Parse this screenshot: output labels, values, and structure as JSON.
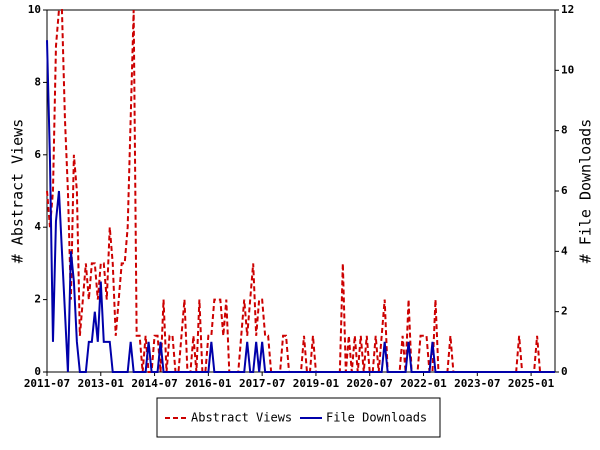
{
  "chart_data": {
    "type": "line",
    "ylabel": "# Abstract Views",
    "y2label": "# File Downloads",
    "xlim": [
      "2011-07",
      "2025-09"
    ],
    "xticks": [
      "2011-07",
      "2013-01",
      "2014-07",
      "2016-01",
      "2017-07",
      "2019-01",
      "2020-07",
      "2022-01",
      "2023-07",
      "2025-01"
    ],
    "ylim": [
      0,
      10
    ],
    "yticks": [
      0,
      2,
      4,
      6,
      8,
      10
    ],
    "y2lim": [
      0,
      12
    ],
    "y2ticks": [
      0,
      2,
      4,
      6,
      8,
      10,
      12
    ],
    "legend": "bottom",
    "x": [
      "2011-07",
      "2011-08",
      "2011-09",
      "2011-10",
      "2011-11",
      "2011-12",
      "2012-01",
      "2012-02",
      "2012-03",
      "2012-04",
      "2012-05",
      "2012-06",
      "2012-07",
      "2012-08",
      "2012-09",
      "2012-10",
      "2012-11",
      "2012-12",
      "2013-01",
      "2013-02",
      "2013-03",
      "2013-04",
      "2013-05",
      "2013-06",
      "2013-07",
      "2013-08",
      "2013-09",
      "2013-10",
      "2013-11",
      "2013-12",
      "2014-01",
      "2014-02",
      "2014-03",
      "2014-04",
      "2014-05",
      "2014-06",
      "2014-07",
      "2014-08",
      "2014-09",
      "2014-10",
      "2014-11",
      "2014-12",
      "2015-01",
      "2015-02",
      "2015-03",
      "2015-04",
      "2015-05",
      "2015-06",
      "2015-07",
      "2015-08",
      "2015-09",
      "2015-10",
      "2015-11",
      "2015-12",
      "2016-01",
      "2016-02",
      "2016-03",
      "2016-04",
      "2016-05",
      "2016-06",
      "2016-07",
      "2016-08",
      "2016-09",
      "2016-10",
      "2016-11",
      "2016-12",
      "2017-01",
      "2017-02",
      "2017-03",
      "2017-04",
      "2017-05",
      "2017-06",
      "2017-07",
      "2017-08",
      "2017-09",
      "2017-10",
      "2017-11",
      "2017-12",
      "2018-01",
      "2018-02",
      "2018-03",
      "2018-04",
      "2018-05",
      "2018-06",
      "2018-07",
      "2018-08",
      "2018-09",
      "2018-10",
      "2018-11",
      "2018-12",
      "2019-01",
      "2019-02",
      "2019-03",
      "2019-04",
      "2019-05",
      "2019-06",
      "2019-07",
      "2019-08",
      "2019-09",
      "2019-10",
      "2019-11",
      "2019-12",
      "2020-01",
      "2020-02",
      "2020-03",
      "2020-04",
      "2020-05",
      "2020-06",
      "2020-07",
      "2020-08",
      "2020-09",
      "2020-10",
      "2020-11",
      "2020-12",
      "2021-01",
      "2021-02",
      "2021-03",
      "2021-04",
      "2021-05",
      "2021-06",
      "2021-07",
      "2021-08",
      "2021-09",
      "2021-10",
      "2021-11",
      "2021-12",
      "2022-01",
      "2022-02",
      "2022-03",
      "2022-04",
      "2022-05",
      "2022-06",
      "2022-07",
      "2022-08",
      "2022-09",
      "2022-10",
      "2022-11",
      "2022-12",
      "2023-01",
      "2023-02",
      "2023-03",
      "2023-04",
      "2023-05",
      "2023-06",
      "2023-07",
      "2023-08",
      "2023-09",
      "2023-10",
      "2023-11",
      "2023-12",
      "2024-01",
      "2024-02",
      "2024-03",
      "2024-04",
      "2024-05",
      "2024-06",
      "2024-07",
      "2024-08",
      "2024-09",
      "2024-10",
      "2024-11",
      "2024-12",
      "2025-01",
      "2025-02",
      "2025-03",
      "2025-04",
      "2025-05",
      "2025-06",
      "2025-07",
      "2025-08",
      "2025-09"
    ],
    "series": [
      {
        "name": "Abstract Views",
        "color": "#cc0000",
        "line_style": "dashed",
        "axis": "y",
        "values": [
          5,
          4,
          5,
          9,
          10,
          10,
          7,
          5,
          2,
          6,
          5,
          1,
          2,
          3,
          2,
          3,
          3,
          2,
          3,
          3,
          2,
          4,
          3,
          1,
          2,
          3,
          3,
          4,
          7,
          10,
          1,
          1,
          0,
          1,
          0,
          0,
          1,
          1,
          0,
          2,
          0,
          1,
          1,
          0,
          0,
          1,
          2,
          0,
          0,
          1,
          0,
          2,
          0,
          0,
          1,
          1,
          2,
          2,
          2,
          1,
          2,
          0,
          0,
          0,
          0,
          1,
          2,
          1,
          2,
          3,
          1,
          2,
          2,
          1,
          1,
          0,
          0,
          0,
          0,
          1,
          1,
          0,
          0,
          0,
          0,
          0,
          1,
          0,
          0,
          1,
          0,
          0,
          0,
          0,
          0,
          0,
          0,
          0,
          0,
          3,
          0,
          1,
          0,
          1,
          0,
          1,
          0,
          1,
          0,
          0,
          1,
          0,
          1,
          2,
          0,
          0,
          0,
          0,
          0,
          1,
          0,
          2,
          0,
          0,
          0,
          1,
          1,
          1,
          0,
          0,
          2,
          0,
          0,
          0,
          0,
          1,
          0,
          0,
          0,
          0,
          0,
          0,
          0,
          0,
          0,
          0,
          0,
          0,
          0,
          0,
          0,
          0,
          0,
          0,
          0,
          0,
          0,
          0,
          1,
          0,
          0,
          0,
          0,
          0,
          1,
          0,
          0,
          0,
          0,
          0,
          0
        ]
      },
      {
        "name": "File Downloads",
        "color": "#0000aa",
        "line_style": "solid",
        "axis": "y2",
        "values": [
          11,
          7,
          1,
          5,
          6,
          4,
          2,
          0,
          4,
          3,
          1,
          0,
          0,
          0,
          1,
          1,
          2,
          1,
          3,
          1,
          1,
          1,
          0,
          0,
          0,
          0,
          0,
          0,
          1,
          0,
          0,
          0,
          0,
          0,
          1,
          0,
          0,
          0,
          1,
          0,
          0,
          0,
          0,
          0,
          0,
          0,
          0,
          0,
          0,
          0,
          0,
          0,
          0,
          0,
          0,
          1,
          0,
          0,
          0,
          0,
          0,
          0,
          0,
          0,
          0,
          0,
          0,
          1,
          0,
          0,
          1,
          0,
          1,
          0,
          0,
          0,
          0,
          0,
          0,
          0,
          0,
          0,
          0,
          0,
          0,
          0,
          0,
          0,
          0,
          0,
          0,
          0,
          0,
          0,
          0,
          0,
          0,
          0,
          0,
          0,
          0,
          0,
          0,
          0,
          0,
          0,
          0,
          0,
          0,
          0,
          0,
          0,
          0,
          1,
          0,
          0,
          0,
          0,
          0,
          0,
          0,
          1,
          0,
          0,
          0,
          0,
          0,
          0,
          0,
          1,
          0,
          0,
          0,
          0,
          0,
          0,
          0,
          0,
          0,
          0,
          0,
          0,
          0,
          0,
          0,
          0,
          0,
          0,
          0,
          0,
          0,
          0,
          0,
          0,
          0,
          0,
          0,
          0,
          0,
          0,
          0,
          0,
          0,
          0,
          0,
          0,
          0,
          0,
          0,
          0,
          0
        ]
      }
    ]
  }
}
